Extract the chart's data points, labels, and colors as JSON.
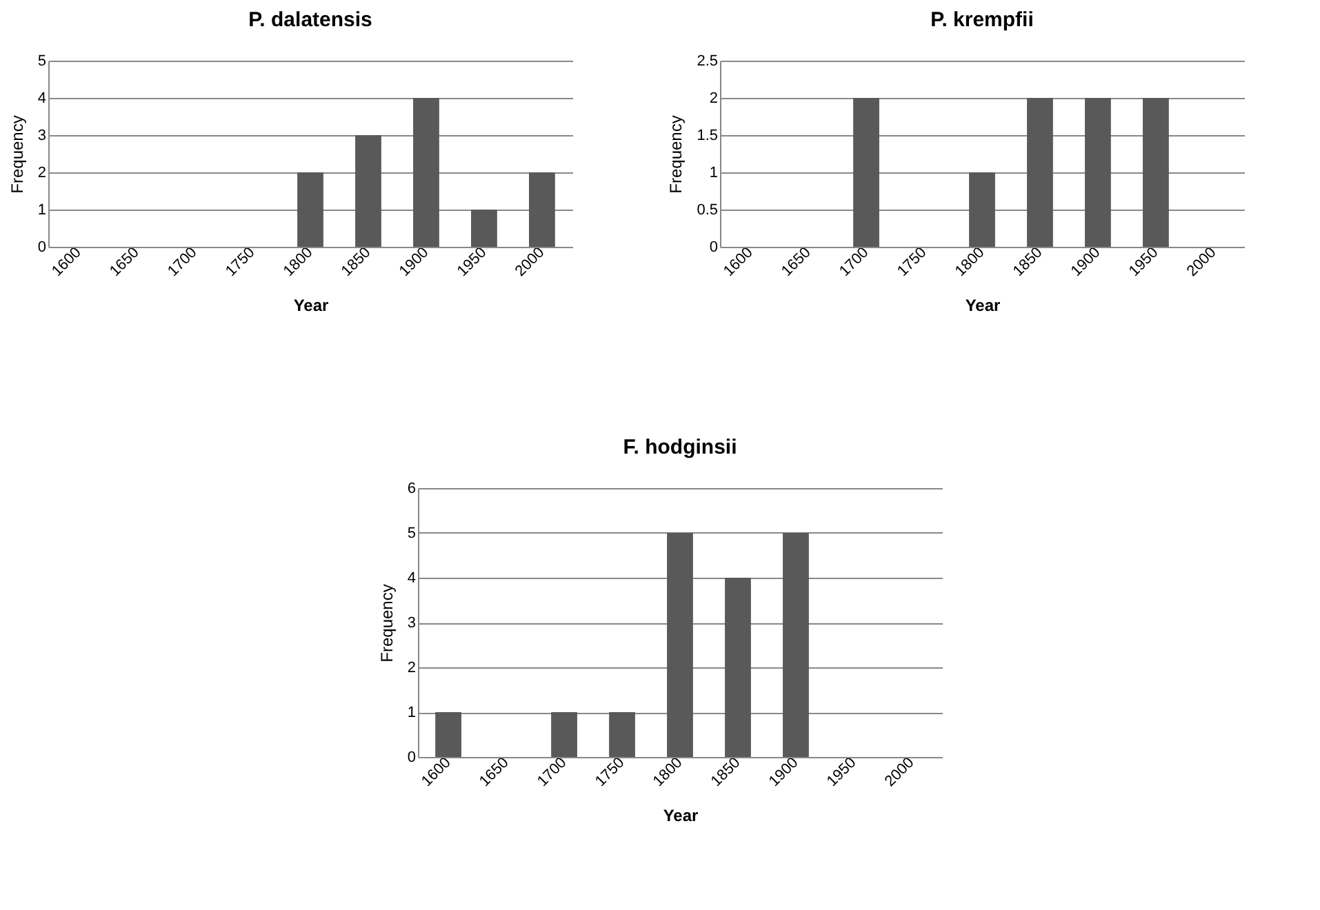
{
  "chart_data": [
    {
      "type": "bar",
      "title": "P. dalatensis",
      "xlabel": "Year",
      "ylabel": "Frequency",
      "categories": [
        "1600",
        "1650",
        "1700",
        "1750",
        "1800",
        "1850",
        "1900",
        "1950",
        "2000"
      ],
      "values": [
        0,
        0,
        0,
        0,
        2,
        3,
        4,
        1,
        2
      ],
      "color": "#595959",
      "ylim": [
        0,
        5
      ],
      "yticks": [
        0,
        1,
        2,
        3,
        4,
        5
      ],
      "grid": "y"
    },
    {
      "type": "bar",
      "title": "P. krempfii",
      "xlabel": "Year",
      "ylabel": "Frequency",
      "categories": [
        "1600",
        "1650",
        "1700",
        "1750",
        "1800",
        "1850",
        "1900",
        "1950",
        "2000"
      ],
      "values": [
        0,
        0,
        2,
        0,
        1,
        2,
        2,
        2,
        0
      ],
      "color": "#595959",
      "ylim": [
        0,
        2.5
      ],
      "yticks": [
        0,
        0.5,
        1,
        1.5,
        2,
        2.5
      ],
      "grid": "y"
    },
    {
      "type": "bar",
      "title": "F. hodginsii",
      "xlabel": "Year",
      "ylabel": "Frequency",
      "categories": [
        "1600",
        "1650",
        "1700",
        "1750",
        "1800",
        "1850",
        "1900",
        "1950",
        "2000"
      ],
      "values": [
        1,
        0,
        1,
        1,
        5,
        4,
        5,
        0,
        0
      ],
      "color": "#595959",
      "ylim": [
        0,
        6
      ],
      "yticks": [
        0,
        1,
        2,
        3,
        4,
        5,
        6
      ],
      "grid": "y"
    }
  ]
}
